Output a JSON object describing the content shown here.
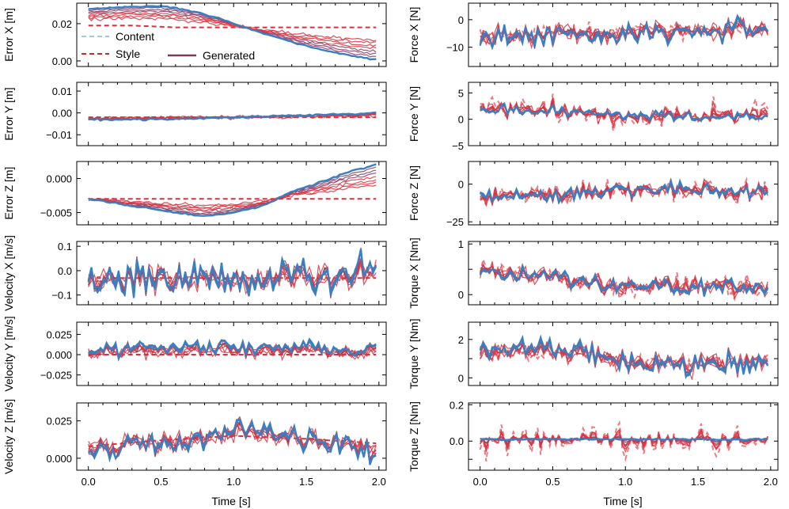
{
  "figure": {
    "x_label": "Time [s]",
    "x_ticks": [
      "0.0",
      "0.5",
      "1.0",
      "1.5",
      "2.0"
    ],
    "legend": {
      "entries": [
        {
          "label": "Content",
          "style": "dashed",
          "color": "#9ec9e2"
        },
        {
          "label": "Style",
          "style": "dashed",
          "color": "#d62728"
        },
        {
          "label": "Generated",
          "style": "solid",
          "color": "#7b3b5e"
        }
      ]
    },
    "colors": {
      "content": "#3a7fc1",
      "content_legend": "#9ec9e2",
      "style": "#d9323f",
      "style_light": "#ec7c82",
      "generated": "#8b3a62"
    }
  },
  "chart_data": [
    {
      "type": "line",
      "ylabel": "Error X [m]",
      "ylim": [
        -0.003,
        0.031
      ],
      "yticks": [
        0.0,
        0.02
      ],
      "ytick_labels": [
        "0.00",
        "0.02"
      ],
      "xlim": [
        -0.08,
        2.05
      ],
      "series": [
        {
          "name": "Content",
          "shape": [
            [
              0.0,
              0.028
            ],
            [
              0.3,
              0.029
            ],
            [
              0.5,
              0.0295
            ],
            [
              0.7,
              0.027
            ],
            [
              0.9,
              0.023
            ],
            [
              1.0,
              0.02
            ],
            [
              1.2,
              0.015
            ],
            [
              1.4,
              0.01
            ],
            [
              1.6,
              0.006
            ],
            [
              1.8,
              0.003
            ],
            [
              1.95,
              0.001
            ]
          ],
          "noise": 0.0003
        },
        {
          "name": "Style",
          "shape": [
            [
              0.0,
              0.019
            ],
            [
              0.3,
              0.019
            ],
            [
              0.6,
              0.018
            ],
            [
              0.9,
              0.018
            ],
            [
              1.2,
              0.018
            ],
            [
              1.5,
              0.018
            ],
            [
              1.8,
              0.018
            ],
            [
              1.98,
              0.018
            ]
          ],
          "noise": 0.0
        }
      ]
    },
    {
      "type": "line",
      "ylabel": "Force X [N]",
      "ylim": [
        -17,
        6
      ],
      "yticks": [
        0,
        -10
      ],
      "ytick_labels": [
        "0",
        "−10"
      ],
      "xlim": [
        -0.08,
        2.05
      ],
      "series": [
        {
          "name": "Content",
          "shape": [
            [
              0.0,
              -6
            ],
            [
              0.5,
              -6
            ],
            [
              1.0,
              -5
            ],
            [
              1.5,
              -5
            ],
            [
              1.98,
              -4
            ]
          ],
          "noise": 3.5
        },
        {
          "name": "Style",
          "shape": [
            [
              0.0,
              -6
            ],
            [
              0.5,
              -5
            ],
            [
              1.0,
              -4
            ],
            [
              1.5,
              -4
            ],
            [
              1.98,
              -4
            ]
          ],
          "noise": 2.5
        }
      ]
    },
    {
      "type": "line",
      "ylabel": "Error Y [m]",
      "ylim": [
        -0.015,
        0.014
      ],
      "yticks": [
        0.01,
        0.0,
        -0.01
      ],
      "ytick_labels": [
        "0.01",
        "0.00",
        "−0.01"
      ],
      "xlim": [
        -0.08,
        2.05
      ],
      "series": [
        {
          "name": "Content",
          "shape": [
            [
              0.0,
              -0.003
            ],
            [
              0.5,
              -0.003
            ],
            [
              1.0,
              -0.002
            ],
            [
              1.5,
              -0.001
            ],
            [
              1.98,
              0.0
            ]
          ],
          "noise": 0.0004
        },
        {
          "name": "Style",
          "shape": [
            [
              0.0,
              -0.002
            ],
            [
              1.0,
              -0.002
            ],
            [
              1.98,
              -0.002
            ]
          ],
          "noise": 0.0
        }
      ]
    },
    {
      "type": "line",
      "ylabel": "Force Y [N]",
      "ylim": [
        -5,
        7
      ],
      "yticks": [
        5,
        0,
        -5
      ],
      "ytick_labels": [
        "5",
        "0",
        "−5"
      ],
      "xlim": [
        -0.08,
        2.05
      ],
      "series": [
        {
          "name": "Content",
          "shape": [
            [
              0.0,
              1.8
            ],
            [
              0.5,
              1.8
            ],
            [
              1.0,
              1.0
            ],
            [
              1.5,
              0.5
            ],
            [
              1.98,
              0.5
            ]
          ],
          "noise": 0.8
        },
        {
          "name": "Style",
          "shape": [
            [
              0.0,
              3
            ],
            [
              0.5,
              2
            ],
            [
              1.0,
              0
            ],
            [
              1.5,
              1
            ],
            [
              1.98,
              2
            ]
          ],
          "noise": 2.0
        }
      ]
    },
    {
      "type": "line",
      "ylabel": "Error Z [m]",
      "ylim": [
        -0.0068,
        0.0025
      ],
      "yticks": [
        0.0,
        -0.005
      ],
      "ytick_labels": [
        "0.000",
        "−0.005"
      ],
      "xlim": [
        -0.08,
        2.05
      ],
      "series": [
        {
          "name": "Content",
          "shape": [
            [
              0.0,
              -0.003
            ],
            [
              0.3,
              -0.004
            ],
            [
              0.6,
              -0.005
            ],
            [
              0.8,
              -0.0055
            ],
            [
              1.0,
              -0.005
            ],
            [
              1.2,
              -0.004
            ],
            [
              1.4,
              -0.002
            ],
            [
              1.6,
              -0.0005
            ],
            [
              1.8,
              0.001
            ],
            [
              1.98,
              0.002
            ]
          ],
          "noise": 0.0001
        },
        {
          "name": "Style",
          "shape": [
            [
              0.0,
              -0.003
            ],
            [
              1.0,
              -0.003
            ],
            [
              1.98,
              -0.003
            ]
          ],
          "noise": 0.0
        }
      ]
    },
    {
      "type": "line",
      "ylabel": "Force Z [N]",
      "ylim": [
        -27,
        15
      ],
      "yticks": [
        0,
        -25
      ],
      "ytick_labels": [
        "0",
        "−25"
      ],
      "xlim": [
        -0.08,
        2.05
      ],
      "series": [
        {
          "name": "Content",
          "shape": [
            [
              0.0,
              -8
            ],
            [
              0.5,
              -7
            ],
            [
              1.0,
              -3
            ],
            [
              1.5,
              -3
            ],
            [
              1.98,
              -5
            ]
          ],
          "noise": 4
        },
        {
          "name": "Style",
          "shape": [
            [
              0.0,
              -8
            ],
            [
              0.5,
              -6
            ],
            [
              1.0,
              -4
            ],
            [
              1.5,
              -5
            ],
            [
              1.98,
              -5
            ]
          ],
          "noise": 6
        }
      ]
    },
    {
      "type": "line",
      "ylabel": "Velocity X [m/s]",
      "ylim": [
        -0.14,
        0.12
      ],
      "yticks": [
        0.1,
        0.0,
        -0.1
      ],
      "ytick_labels": [
        "0.1",
        "0.0",
        "−0.1"
      ],
      "xlim": [
        -0.08,
        2.05
      ],
      "series": [
        {
          "name": "Content",
          "shape": [
            [
              0.0,
              -0.03
            ],
            [
              0.5,
              -0.03
            ],
            [
              1.0,
              -0.03
            ],
            [
              1.5,
              -0.02
            ],
            [
              1.98,
              0.0
            ]
          ],
          "noise": 0.06
        },
        {
          "name": "Style",
          "shape": [
            [
              0.0,
              -0.03
            ],
            [
              1.0,
              -0.03
            ],
            [
              1.98,
              -0.03
            ]
          ],
          "noise": 0.0
        }
      ]
    },
    {
      "type": "line",
      "ylabel": "Torque X [Nm]",
      "ylim": [
        -0.2,
        1.05
      ],
      "yticks": [
        1,
        0.5,
        0
      ],
      "ytick_labels": [
        "1",
        "",
        "0"
      ],
      "xlim": [
        -0.08,
        2.05
      ],
      "series": [
        {
          "name": "Content",
          "shape": [
            [
              0.0,
              0.4
            ],
            [
              0.5,
              0.35
            ],
            [
              1.0,
              0.15
            ],
            [
              1.5,
              0.15
            ],
            [
              1.98,
              0.1
            ]
          ],
          "noise": 0.15
        },
        {
          "name": "Style",
          "shape": [
            [
              0.0,
              0.6
            ],
            [
              0.5,
              0.35
            ],
            [
              1.0,
              0.1
            ],
            [
              1.5,
              0.2
            ],
            [
              1.98,
              0.1
            ]
          ],
          "noise": 0.2
        }
      ]
    },
    {
      "type": "line",
      "ylabel": "Velocity Y [m/s]",
      "ylim": [
        -0.038,
        0.04
      ],
      "yticks": [
        0.025,
        0.0,
        -0.025
      ],
      "ytick_labels": [
        "0.025",
        "0.000",
        "−0.025"
      ],
      "xlim": [
        -0.08,
        2.05
      ],
      "series": [
        {
          "name": "Content",
          "shape": [
            [
              0.0,
              0.005
            ],
            [
              0.5,
              0.01
            ],
            [
              1.0,
              0.01
            ],
            [
              1.5,
              0.01
            ],
            [
              1.98,
              0.005
            ]
          ],
          "noise": 0.008
        },
        {
          "name": "Style",
          "shape": [
            [
              0.0,
              0.0
            ],
            [
              1.0,
              0.0
            ],
            [
              1.98,
              0.0
            ]
          ],
          "noise": 0.0
        }
      ]
    },
    {
      "type": "line",
      "ylabel": "Torque Y [Nm]",
      "ylim": [
        -0.4,
        2.9
      ],
      "yticks": [
        2,
        1,
        0
      ],
      "ytick_labels": [
        "2",
        "",
        "0"
      ],
      "xlim": [
        -0.08,
        2.05
      ],
      "series": [
        {
          "name": "Content",
          "shape": [
            [
              0.0,
              1.5
            ],
            [
              0.5,
              1.6
            ],
            [
              1.0,
              0.8
            ],
            [
              1.5,
              0.7
            ],
            [
              1.98,
              0.8
            ]
          ],
          "noise": 0.5
        },
        {
          "name": "Style",
          "shape": [
            [
              0.0,
              1.2
            ],
            [
              0.5,
              1.3
            ],
            [
              1.0,
              0.9
            ],
            [
              1.5,
              0.8
            ],
            [
              1.98,
              0.9
            ]
          ],
          "noise": 0.3
        }
      ]
    },
    {
      "type": "line",
      "ylabel": "Velocity Z [m/s]",
      "ylim": [
        -0.008,
        0.037
      ],
      "yticks": [
        0.025,
        0.0
      ],
      "ytick_labels": [
        "0.025",
        "0.000"
      ],
      "xlim": [
        -0.08,
        2.05
      ],
      "series": [
        {
          "name": "Content",
          "shape": [
            [
              0.0,
              0.005
            ],
            [
              0.4,
              0.01
            ],
            [
              0.6,
              0.008
            ],
            [
              0.9,
              0.015
            ],
            [
              1.2,
              0.02
            ],
            [
              1.5,
              0.012
            ],
            [
              1.98,
              0.005
            ]
          ],
          "noise": 0.007
        },
        {
          "name": "Style",
          "shape": [
            [
              0.0,
              0.008
            ],
            [
              0.5,
              0.012
            ],
            [
              1.0,
              0.015
            ],
            [
              1.5,
              0.013
            ],
            [
              1.98,
              0.01
            ]
          ],
          "noise": 0.0
        }
      ]
    },
    {
      "type": "line",
      "ylabel": "Torque Z [Nm]",
      "ylim": [
        -0.16,
        0.21
      ],
      "yticks": [
        0.2,
        0.0,
        -0.1
      ],
      "ytick_labels": [
        "0.2",
        "0.0",
        ""
      ],
      "xlim": [
        -0.08,
        2.05
      ],
      "series": [
        {
          "name": "Content",
          "shape": [
            [
              0.0,
              0.01
            ],
            [
              1.0,
              0.01
            ],
            [
              1.98,
              0.01
            ]
          ],
          "noise": 0.004
        },
        {
          "name": "Style",
          "shape": [
            [
              0.0,
              0.0
            ],
            [
              1.0,
              0.0
            ],
            [
              1.98,
              0.0
            ]
          ],
          "noise": 0.08
        }
      ]
    }
  ]
}
